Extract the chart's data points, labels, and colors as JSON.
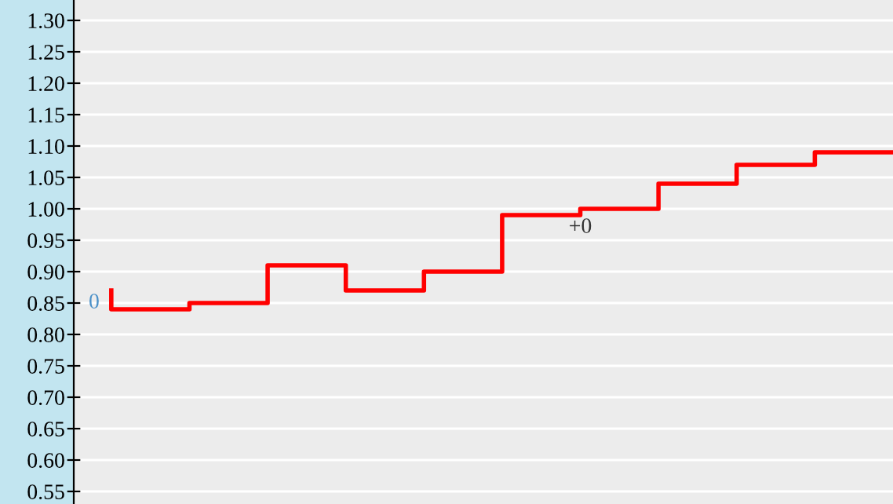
{
  "chart_data": {
    "type": "step",
    "categories": [
      null,
      null,
      null,
      null,
      null,
      null,
      null,
      null,
      null,
      null,
      null
    ],
    "series": [
      {
        "color": "#ff0000",
        "values": [
          0.87,
          0.84,
          0.85,
          0.91,
          0.87,
          0.9,
          0.99,
          1.0,
          1.04,
          1.07,
          1.09
        ]
      }
    ],
    "ylim": [
      0.53,
      1.3325
    ],
    "yticks": [
      {
        "value": 0.55,
        "label": "0.55"
      },
      {
        "value": 0.6,
        "label": "0.60"
      },
      {
        "value": 0.65,
        "label": "0.65"
      },
      {
        "value": 0.7,
        "label": "0.70"
      },
      {
        "value": 0.75,
        "label": "0.75"
      },
      {
        "value": 0.8,
        "label": "0.80"
      },
      {
        "value": 0.85,
        "label": "0.85"
      },
      {
        "value": 0.9,
        "label": "0.90"
      },
      {
        "value": 0.95,
        "label": "0.95"
      },
      {
        "value": 1.0,
        "label": "1.00"
      },
      {
        "value": 1.05,
        "label": "1.05"
      },
      {
        "value": 1.1,
        "label": "1.10"
      },
      {
        "value": 1.15,
        "label": "1.15"
      },
      {
        "value": 1.2,
        "label": "1.20"
      },
      {
        "value": 1.25,
        "label": "1.25"
      },
      {
        "value": 1.3,
        "label": "1.30"
      }
    ],
    "grid": "y",
    "annotations": [
      "0",
      "+0"
    ]
  }
}
